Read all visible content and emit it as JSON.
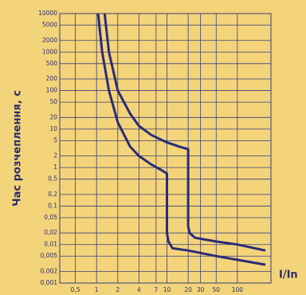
{
  "chart_data": {
    "type": "line",
    "y_label": "Час розчеплення, с",
    "x_label": "I/In",
    "log_x": true,
    "log_y": true,
    "grid": true,
    "xlim": [
      0.3,
      300
    ],
    "ylim": [
      0.001,
      10000
    ],
    "xticks": [
      {
        "value": 0.5,
        "label": "0,5"
      },
      1,
      2,
      4,
      7,
      10,
      20,
      30,
      50,
      100
    ],
    "yticks": [
      10000,
      5000,
      2000,
      1000,
      500,
      200,
      100,
      50,
      20,
      10,
      5,
      2,
      1,
      {
        "value": 0.5,
        "label": "0,5"
      },
      {
        "value": 0.2,
        "label": "0,2"
      },
      {
        "value": 0.1,
        "label": "0,1"
      },
      {
        "value": 0.05,
        "label": "0,05"
      },
      {
        "value": 0.02,
        "label": "0,02"
      },
      {
        "value": 0.01,
        "label": "0,01"
      },
      {
        "value": 0.005,
        "label": "0,005"
      },
      {
        "value": 0.002,
        "label": "0,002"
      },
      {
        "value": 0.001,
        "label": "0,001"
      }
    ],
    "series": [
      {
        "color": "#2a2c78",
        "x": [
          1.3,
          1.5,
          2,
          3,
          4,
          6,
          10,
          15,
          20,
          20,
          21,
          25,
          50,
          100,
          250
        ],
        "values": [
          10000,
          1000,
          100,
          25,
          12,
          7,
          4.5,
          3.5,
          3,
          0.03,
          0.02,
          0.015,
          0.012,
          0.01,
          0.007
        ]
      },
      {
        "color": "#2a2c78",
        "x": [
          1.05,
          1.2,
          1.5,
          2,
          3,
          4,
          6,
          8,
          10,
          10,
          10.5,
          12,
          20,
          50,
          100,
          250
        ],
        "values": [
          10000,
          1000,
          100,
          15,
          3.5,
          2,
          1.2,
          0.9,
          0.7,
          0.02,
          0.012,
          0.008,
          0.007,
          0.005,
          0.004,
          0.003
        ]
      }
    ]
  }
}
